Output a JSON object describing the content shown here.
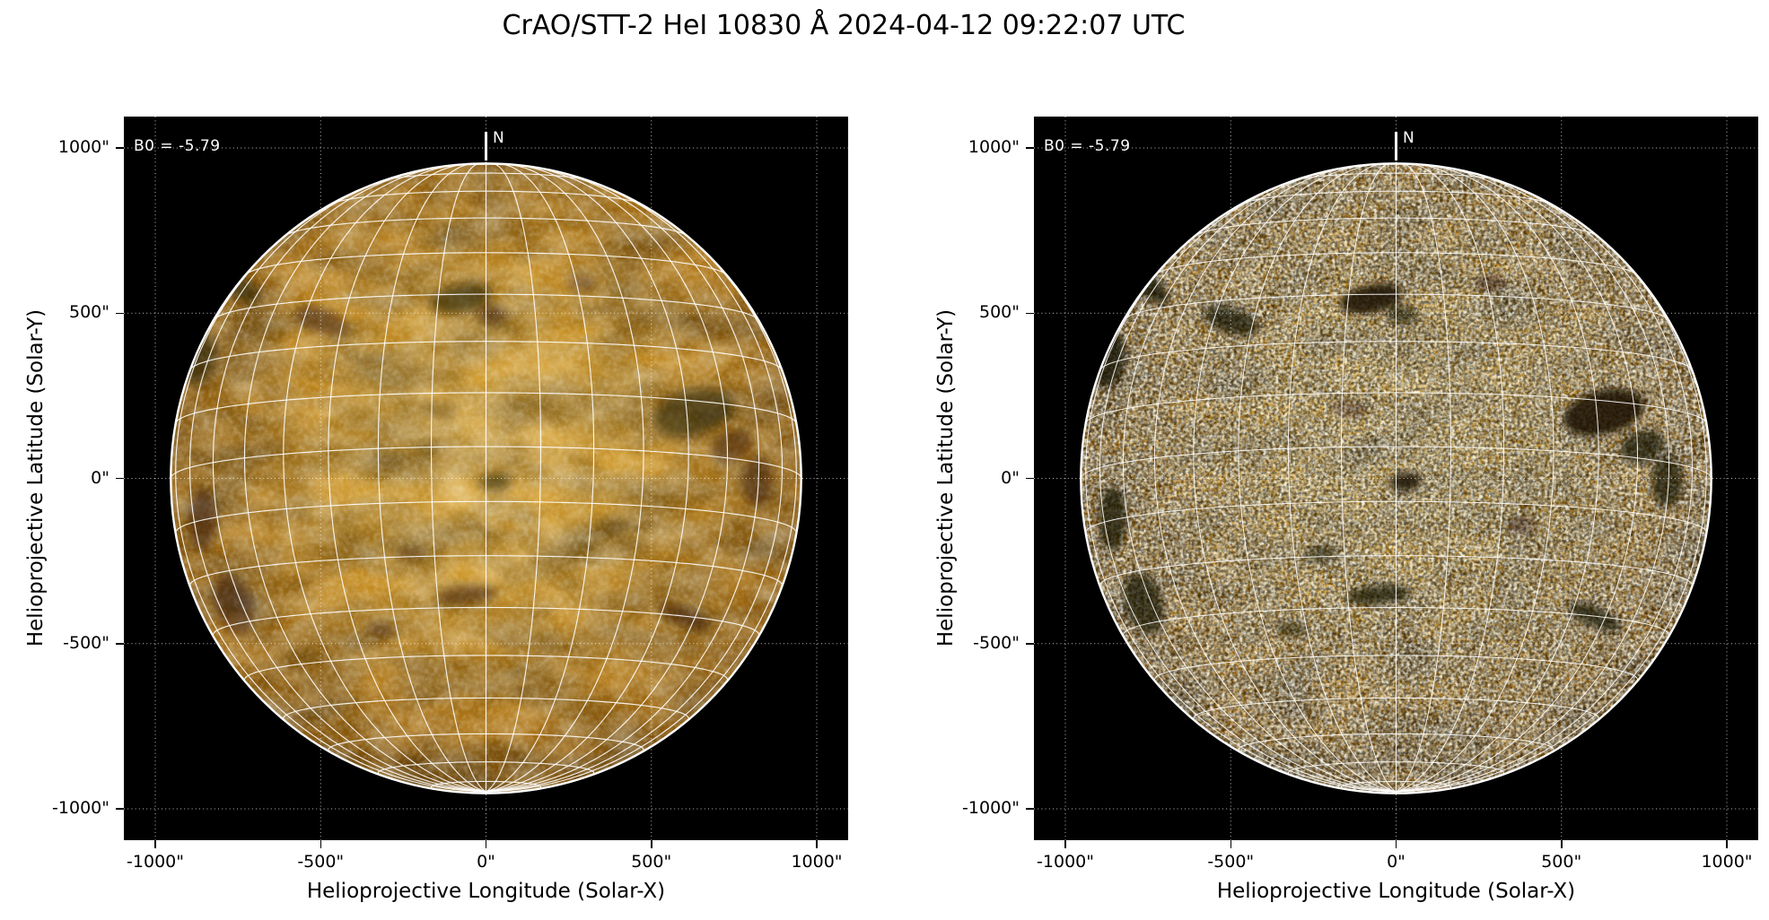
{
  "figure": {
    "title": "CrAO/STT-2 HeI 10830 Å 2024-04-12 09:22:07 UTC"
  },
  "chart_data": {
    "type": "image",
    "subtype": "solar-full-disk-pair",
    "description": "Two full-disk solar images in HeI 10830 Å with overlaid heliographic 10-degree grid, shown side by side in helioprojective coordinates",
    "axes": {
      "xlabel": "Helioprojective Longitude (Solar-X)",
      "ylabel": "Helioprojective Latitude (Solar-Y)",
      "xlim": [
        -1095,
        1095
      ],
      "ylim": [
        -1095,
        1095
      ],
      "grid": "dotted",
      "xticks": [
        {
          "value": -1000,
          "label": "-1000\""
        },
        {
          "value": -500,
          "label": "-500\""
        },
        {
          "value": 0,
          "label": "0\""
        },
        {
          "value": 500,
          "label": "500\""
        },
        {
          "value": 1000,
          "label": "1000\""
        }
      ],
      "yticks": [
        {
          "value": 1000,
          "label": "1000\""
        },
        {
          "value": 500,
          "label": "500\""
        },
        {
          "value": 0,
          "label": "0\""
        },
        {
          "value": -500,
          "label": "-500\""
        },
        {
          "value": -1000,
          "label": "-1000\""
        }
      ]
    },
    "annotations": {
      "b0_label": "B0 = -5.79",
      "north_label": "N"
    },
    "solar": {
      "b0_deg": -5.79,
      "radius_arcsec": 953,
      "grid_spacing_deg": 10
    },
    "colors": {
      "page_background": "#ffffff",
      "panel_background": "#000000",
      "axis_text": "#000000",
      "panel_text": "#ffffff",
      "grid_line": "#ffffff",
      "dotted_grid": "#ffffff",
      "limb": "#ffffff",
      "feature_dark": "#150d00",
      "disk_gradient": [
        "#dcab44",
        "#cc9528",
        "#bb811b",
        "#a06810",
        "#7c4f0a"
      ]
    },
    "panels": [
      {
        "id": "left",
        "texture": "smooth",
        "feature_strength": 0.55
      },
      {
        "id": "right",
        "texture": "speckled",
        "feature_strength": 0.85
      }
    ],
    "features": [
      {
        "x": -0.08,
        "y": 0.57,
        "rx": 0.1,
        "ry": 0.045,
        "rot": -12,
        "op": 1.0
      },
      {
        "x": 0.02,
        "y": 0.52,
        "rx": 0.05,
        "ry": 0.03,
        "rot": 0,
        "op": 0.7
      },
      {
        "x": -0.52,
        "y": 0.5,
        "rx": 0.09,
        "ry": 0.04,
        "rot": 18,
        "op": 0.8
      },
      {
        "x": -0.8,
        "y": 0.62,
        "rx": 0.1,
        "ry": 0.035,
        "rot": 38,
        "op": 0.9
      },
      {
        "x": -0.91,
        "y": 0.38,
        "rx": 0.05,
        "ry": 0.09,
        "rot": 10,
        "op": 0.9
      },
      {
        "x": -0.9,
        "y": -0.13,
        "rx": 0.045,
        "ry": 0.1,
        "rot": 0,
        "op": 0.85
      },
      {
        "x": -0.8,
        "y": -0.4,
        "rx": 0.06,
        "ry": 0.1,
        "rot": -18,
        "op": 0.8
      },
      {
        "x": 0.66,
        "y": 0.21,
        "rx": 0.13,
        "ry": 0.07,
        "rot": -14,
        "op": 1.0
      },
      {
        "x": 0.78,
        "y": 0.1,
        "rx": 0.07,
        "ry": 0.05,
        "rot": -20,
        "op": 0.8
      },
      {
        "x": 0.86,
        "y": -0.01,
        "rx": 0.05,
        "ry": 0.08,
        "rot": 0,
        "op": 0.8
      },
      {
        "x": 0.03,
        "y": -0.01,
        "rx": 0.05,
        "ry": 0.028,
        "rot": -5,
        "op": 1.0
      },
      {
        "x": -0.24,
        "y": -0.24,
        "rx": 0.05,
        "ry": 0.025,
        "rot": -10,
        "op": 0.6
      },
      {
        "x": -0.06,
        "y": -0.37,
        "rx": 0.1,
        "ry": 0.03,
        "rot": -6,
        "op": 0.8
      },
      {
        "x": 0.63,
        "y": -0.44,
        "rx": 0.09,
        "ry": 0.03,
        "rot": 22,
        "op": 0.85
      },
      {
        "x": -0.33,
        "y": -0.48,
        "rx": 0.05,
        "ry": 0.025,
        "rot": 8,
        "op": 0.6
      },
      {
        "x": 0.3,
        "y": 0.62,
        "rx": 0.05,
        "ry": 0.03,
        "rot": 0,
        "op": 0.5
      },
      {
        "x": -0.15,
        "y": 0.22,
        "rx": 0.06,
        "ry": 0.03,
        "rot": 10,
        "op": 0.4
      },
      {
        "x": 0.4,
        "y": -0.15,
        "rx": 0.05,
        "ry": 0.03,
        "rot": 0,
        "op": 0.4
      }
    ]
  }
}
